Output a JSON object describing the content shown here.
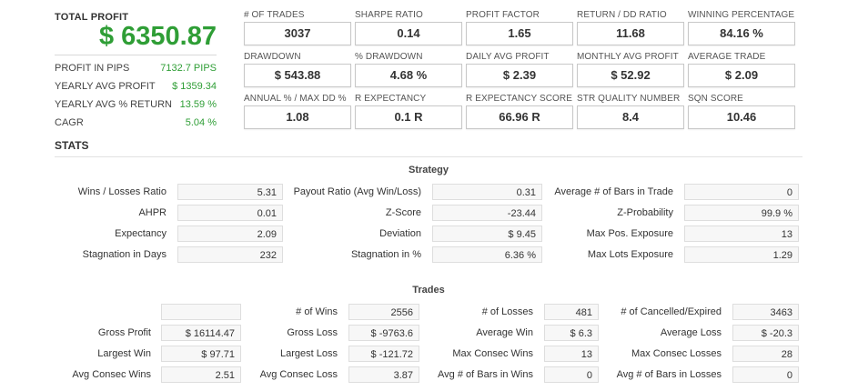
{
  "summary": {
    "total_profit_label": "TOTAL PROFIT",
    "total_profit_value": "$ 6350.87",
    "rows": [
      {
        "label": "PROFIT IN PIPS",
        "value": "7132.7 PIPS"
      },
      {
        "label": "YEARLY AVG PROFIT",
        "value": "$ 1359.34"
      },
      {
        "label": "YEARLY AVG % RETURN",
        "value": "13.59 %"
      },
      {
        "label": "CAGR",
        "value": "5.04 %"
      }
    ]
  },
  "metrics": [
    {
      "label": "# OF TRADES",
      "value": "3037"
    },
    {
      "label": "SHARPE RATIO",
      "value": "0.14"
    },
    {
      "label": "PROFIT FACTOR",
      "value": "1.65"
    },
    {
      "label": "RETURN / DD RATIO",
      "value": "11.68"
    },
    {
      "label": "WINNING PERCENTAGE",
      "value": "84.16 %"
    },
    {
      "label": "DRAWDOWN",
      "value": "$ 543.88"
    },
    {
      "label": "% DRAWDOWN",
      "value": "4.68 %"
    },
    {
      "label": "DAILY AVG PROFIT",
      "value": "$ 2.39"
    },
    {
      "label": "MONTHLY AVG PROFIT",
      "value": "$ 52.92"
    },
    {
      "label": "AVERAGE TRADE",
      "value": "$ 2.09"
    },
    {
      "label": "ANNUAL % / MAX DD %",
      "value": "1.08"
    },
    {
      "label": "R EXPECTANCY",
      "value": "0.1 R"
    },
    {
      "label": "R EXPECTANCY SCORE",
      "value": "66.96 R"
    },
    {
      "label": "STR QUALITY NUMBER",
      "value": "8.4"
    },
    {
      "label": "SQN SCORE",
      "value": "10.46"
    }
  ],
  "stats": {
    "title": "STATS",
    "strategy": {
      "title": "Strategy",
      "rows": [
        [
          {
            "label": "Wins / Losses Ratio",
            "value": "5.31"
          },
          {
            "label": "Payout Ratio (Avg Win/Loss)",
            "value": "0.31"
          },
          {
            "label": "Average # of Bars in Trade",
            "value": "0"
          }
        ],
        [
          {
            "label": "AHPR",
            "value": "0.01"
          },
          {
            "label": "Z-Score",
            "value": "-23.44"
          },
          {
            "label": "Z-Probability",
            "value": "99.9 %"
          }
        ],
        [
          {
            "label": "Expectancy",
            "value": "2.09"
          },
          {
            "label": "Deviation",
            "value": "$ 9.45"
          },
          {
            "label": "Max Pos. Exposure",
            "value": "13"
          }
        ],
        [
          {
            "label": "Stagnation in Days",
            "value": "232"
          },
          {
            "label": "Stagnation in %",
            "value": "6.36 %"
          },
          {
            "label": "Max Lots Exposure",
            "value": "1.29"
          }
        ]
      ]
    },
    "trades": {
      "title": "Trades",
      "rows": [
        [
          {
            "label": "",
            "value": ""
          },
          {
            "label": "# of Wins",
            "value": "2556"
          },
          {
            "label": "# of Losses",
            "value": "481"
          },
          {
            "label": "# of Cancelled/Expired",
            "value": "3463"
          }
        ],
        [
          {
            "label": "Gross Profit",
            "value": "$ 16114.47"
          },
          {
            "label": "Gross Loss",
            "value": "$ -9763.6"
          },
          {
            "label": "Average Win",
            "value": "$ 6.3"
          },
          {
            "label": "Average Loss",
            "value": "$ -20.3"
          }
        ],
        [
          {
            "label": "Largest Win",
            "value": "$ 97.71"
          },
          {
            "label": "Largest Loss",
            "value": "$ -121.72"
          },
          {
            "label": "Max Consec Wins",
            "value": "13"
          },
          {
            "label": "Max Consec Losses",
            "value": "28"
          }
        ],
        [
          {
            "label": "Avg Consec Wins",
            "value": "2.51"
          },
          {
            "label": "Avg Consec Loss",
            "value": "3.87"
          },
          {
            "label": "Avg # of Bars in Wins",
            "value": "0"
          },
          {
            "label": "Avg # of Bars in Losses",
            "value": "0"
          }
        ]
      ]
    }
  }
}
